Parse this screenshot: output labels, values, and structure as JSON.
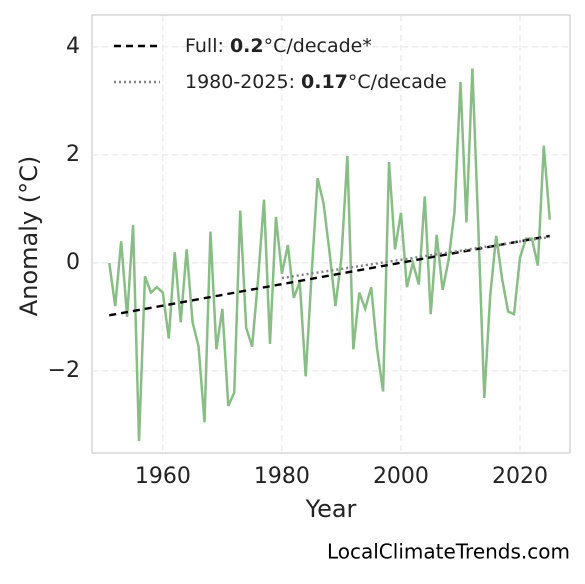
{
  "chart_data": {
    "type": "line",
    "x": [
      1951,
      1952,
      1953,
      1954,
      1955,
      1956,
      1957,
      1958,
      1959,
      1960,
      1961,
      1962,
      1963,
      1964,
      1965,
      1966,
      1967,
      1968,
      1969,
      1970,
      1971,
      1972,
      1973,
      1974,
      1975,
      1976,
      1977,
      1978,
      1979,
      1980,
      1981,
      1982,
      1983,
      1984,
      1985,
      1986,
      1987,
      1988,
      1989,
      1990,
      1991,
      1992,
      1993,
      1994,
      1995,
      1996,
      1997,
      1998,
      1999,
      2000,
      2001,
      2002,
      2003,
      2004,
      2005,
      2006,
      2007,
      2008,
      2009,
      2010,
      2011,
      2012,
      2013,
      2014,
      2015,
      2016,
      2017,
      2018,
      2019,
      2020,
      2021,
      2022,
      2023,
      2024,
      2025
    ],
    "values": [
      0,
      -0.8,
      0.4,
      -1.0,
      0.7,
      -3.3,
      -0.25,
      -0.55,
      -0.45,
      -0.55,
      -1.4,
      0.2,
      -1.1,
      0.25,
      -1.1,
      -1.55,
      -2.95,
      0.58,
      -1.6,
      -0.85,
      -2.65,
      -2.4,
      0.97,
      -1.2,
      -1.55,
      -0.3,
      1.17,
      -1.5,
      0.85,
      -0.2,
      0.33,
      -0.65,
      -0.35,
      -2.1,
      -0.2,
      1.57,
      1.1,
      0.2,
      -0.8,
      0.1,
      1.98,
      -1.6,
      -0.55,
      -0.85,
      -0.45,
      -1.6,
      -2.38,
      1.87,
      0.25,
      0.93,
      -0.45,
      0,
      -0.4,
      1.23,
      -0.95,
      0.52,
      -0.5,
      0.05,
      0.95,
      3.35,
      0.75,
      3.6,
      0.65,
      -2.5,
      -0.6,
      0.5,
      -0.3,
      -0.9,
      -0.95,
      0.1,
      0.45,
      0.45,
      -0.05,
      2.17,
      0.8
    ],
    "color": "#88bd85",
    "trends": [
      {
        "name": "Full: 0.2°C/decade*",
        "color": "#000000",
        "dash": "7,5",
        "x": [
          1951,
          2025
        ],
        "values": [
          -0.97,
          0.5
        ]
      },
      {
        "name": "1980-2025: 0.17°C/decade",
        "color": "#808080",
        "dash": "2,3",
        "x": [
          1980,
          2025
        ],
        "values": [
          -0.28,
          0.48
        ]
      }
    ],
    "xlabel": "Year",
    "ylabel": "Anomaly (°C)",
    "xlim": [
      1948.1,
      2028.4
    ],
    "ylim": [
      -3.52,
      4.59
    ],
    "xticks": [
      1960,
      1980,
      2000,
      2020
    ],
    "yticks": [
      4,
      2,
      0,
      {
        "value": -2,
        "label": "−2"
      }
    ],
    "grid": true,
    "legend": "upper left",
    "source": "LocalClimateTrends.com"
  }
}
